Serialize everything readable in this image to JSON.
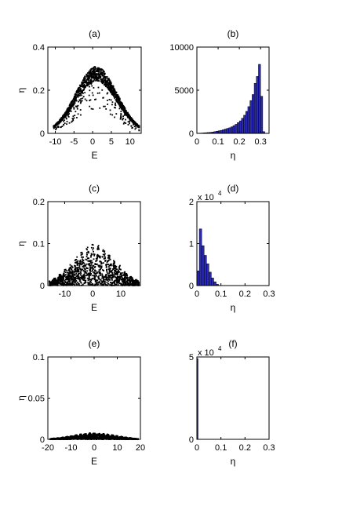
{
  "chart_data": [
    {
      "panel": "(a)",
      "type": "scatter",
      "xlabel": "E",
      "ylabel": "η",
      "xlim": [
        -12,
        13
      ],
      "ylim": [
        0,
        0.4
      ],
      "xticks": [
        -10,
        -5,
        0,
        5,
        10
      ],
      "yticks": [
        0,
        0.2,
        0.4
      ],
      "ytick_labels": [
        "0",
        "0.2",
        "0.4"
      ],
      "envelope": {
        "center": 1.0,
        "peak": 0.31,
        "half_width": 11.5
      },
      "color": "#000000"
    },
    {
      "panel": "(b)",
      "type": "bar",
      "xlabel": "η",
      "ylabel": "",
      "xlim": [
        0,
        0.34
      ],
      "ylim": [
        0,
        10000
      ],
      "xticks": [
        0,
        0.1,
        0.2,
        0.3
      ],
      "yticks": [
        0,
        5000,
        10000
      ],
      "ytick_labels": [
        "0",
        "5000",
        "10000"
      ],
      "bin_width": 0.01,
      "bin_start": 0.0,
      "values": [
        20,
        30,
        40,
        60,
        80,
        100,
        120,
        150,
        200,
        250,
        300,
        350,
        420,
        500,
        580,
        650,
        760,
        900,
        1050,
        1250,
        1450,
        1750,
        2100,
        2550,
        3100,
        3800,
        4500,
        5800,
        6600,
        8000,
        4300,
        200
      ],
      "color": "#2a2ab4"
    },
    {
      "panel": "(c)",
      "type": "scatter",
      "xlabel": "E",
      "ylabel": "η",
      "xlim": [
        -16,
        17
      ],
      "ylim": [
        0,
        0.2
      ],
      "xticks": [
        -10,
        0,
        10
      ],
      "yticks": [
        0,
        0.1,
        0.2
      ],
      "ytick_labels": [
        "0",
        "0.1",
        "0.2"
      ],
      "envelope": {
        "center": 0.5,
        "peak": 0.1,
        "half_width": 16
      },
      "color": "#000000"
    },
    {
      "panel": "(d)",
      "type": "bar",
      "xlabel": "η",
      "ylabel": "",
      "multiplier": "x 10",
      "multiplier_exp": "4",
      "xlim": [
        0,
        0.3
      ],
      "ylim": [
        0,
        2
      ],
      "xticks": [
        0,
        0.1,
        0.2,
        0.3
      ],
      "yticks": [
        0,
        1,
        2
      ],
      "ytick_labels": [
        "0",
        "1",
        "2"
      ],
      "bin_width": 0.01,
      "bin_start": 0.0,
      "values": [
        0.35,
        1.35,
        0.95,
        0.72,
        0.52,
        0.32,
        0.18,
        0.09,
        0.03
      ],
      "color": "#2a2ab4"
    },
    {
      "panel": "(e)",
      "type": "scatter",
      "xlabel": "E",
      "ylabel": "η",
      "xlim": [
        -20,
        20
      ],
      "ylim": [
        0,
        0.1
      ],
      "xticks": [
        -20,
        -10,
        0,
        10,
        20
      ],
      "yticks": [
        0,
        0.05,
        0.1
      ],
      "ytick_labels": [
        "0",
        "0.05",
        "0.1"
      ],
      "envelope": {
        "center": 0,
        "peak": 0.008,
        "half_width": 19
      },
      "color": "#000000"
    },
    {
      "panel": "(f)",
      "type": "bar",
      "xlabel": "η",
      "ylabel": "",
      "multiplier": "x 10",
      "multiplier_exp": "4",
      "xlim": [
        0,
        0.3
      ],
      "ylim": [
        0,
        5
      ],
      "xticks": [
        0,
        0.1,
        0.2,
        0.3
      ],
      "yticks": [
        0,
        5
      ],
      "ytick_labels": [
        "0",
        "5"
      ],
      "bin_width": 0.003,
      "bin_start": 0.0,
      "values": [
        4.9
      ],
      "color": "#2a2ab4"
    }
  ]
}
